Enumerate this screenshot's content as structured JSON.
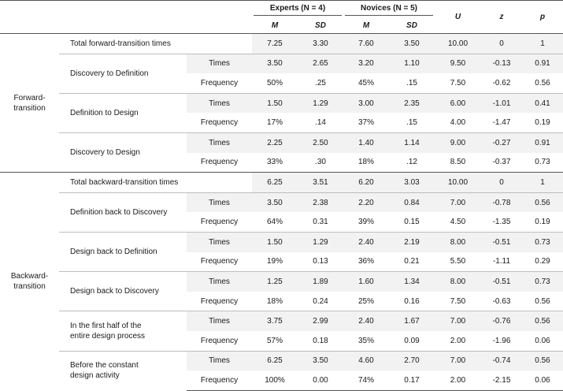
{
  "header": {
    "experts": "Experts (N = 4)",
    "novices": "Novices (N = 5)",
    "m": "M",
    "sd": "SD",
    "u": "U",
    "z": "z",
    "p": "p"
  },
  "sections": [
    {
      "label": "Forward-\ntransition",
      "total": {
        "label": "Total forward-transition times",
        "e_m": "7.25",
        "e_sd": "3.30",
        "n_m": "7.60",
        "n_sd": "3.50",
        "u": "10.00",
        "z": "0",
        "p": "1"
      },
      "groups": [
        {
          "label": "Discovery to Definition",
          "rows": [
            {
              "sub": "Times",
              "e_m": "3.50",
              "e_sd": "2.65",
              "n_m": "3.20",
              "n_sd": "1.10",
              "u": "9.50",
              "z": "-0.13",
              "p": "0.91"
            },
            {
              "sub": "Frequency",
              "e_m": "50%",
              "e_sd": ".25",
              "n_m": "45%",
              "n_sd": ".15",
              "u": "7.50",
              "z": "-0.62",
              "p": "0.56"
            }
          ]
        },
        {
          "label": "Definition to Design",
          "rows": [
            {
              "sub": "Times",
              "e_m": "1.50",
              "e_sd": "1.29",
              "n_m": "3.00",
              "n_sd": "2.35",
              "u": "6.00",
              "z": "-1.01",
              "p": "0.41"
            },
            {
              "sub": "Frequency",
              "e_m": "17%",
              "e_sd": ".14",
              "n_m": "37%",
              "n_sd": ".15",
              "u": "4.00",
              "z": "-1.47",
              "p": "0.19"
            }
          ]
        },
        {
          "label": "Discovery to Design",
          "rows": [
            {
              "sub": "Times",
              "e_m": "2.25",
              "e_sd": "2.50",
              "n_m": "1.40",
              "n_sd": "1.14",
              "u": "9.00",
              "z": "-0.27",
              "p": "0.91"
            },
            {
              "sub": "Frequency",
              "e_m": "33%",
              "e_sd": ".30",
              "n_m": "18%",
              "n_sd": ".12",
              "u": "8.50",
              "z": "-0.37",
              "p": "0.73"
            }
          ]
        }
      ]
    },
    {
      "label": "Backward-\ntransition",
      "total": {
        "label": "Total backward-transition times",
        "e_m": "6.25",
        "e_sd": "3.51",
        "n_m": "6.20",
        "n_sd": "3.03",
        "u": "10.00",
        "z": "0",
        "p": "1"
      },
      "groups": [
        {
          "label": "Definition back to Discovery",
          "rows": [
            {
              "sub": "Times",
              "e_m": "3.50",
              "e_sd": "2.38",
              "n_m": "2.20",
              "n_sd": "0.84",
              "u": "7.00",
              "z": "-0.78",
              "p": "0.56"
            },
            {
              "sub": "Frequency",
              "e_m": "64%",
              "e_sd": "0.31",
              "n_m": "39%",
              "n_sd": "0.15",
              "u": "4.50",
              "z": "-1.35",
              "p": "0.19"
            }
          ]
        },
        {
          "label": "Design back to Definition",
          "rows": [
            {
              "sub": "Times",
              "e_m": "1.50",
              "e_sd": "1.29",
              "n_m": "2.40",
              "n_sd": "2.19",
              "u": "8.00",
              "z": "-0.51",
              "p": "0.73"
            },
            {
              "sub": "Frequency",
              "e_m": "19%",
              "e_sd": "0.13",
              "n_m": "36%",
              "n_sd": "0.21",
              "u": "5.50",
              "z": "-1.11",
              "p": "0.29"
            }
          ]
        },
        {
          "label": "Design back to Discovery",
          "rows": [
            {
              "sub": "Times",
              "e_m": "1.25",
              "e_sd": "1.89",
              "n_m": "1.60",
              "n_sd": "1.34",
              "u": "8.00",
              "z": "-0.51",
              "p": "0.73"
            },
            {
              "sub": "Frequency",
              "e_m": "18%",
              "e_sd": "0.24",
              "n_m": "25%",
              "n_sd": "0.16",
              "u": "7.50",
              "z": "-0.63",
              "p": "0.56"
            }
          ]
        },
        {
          "label": "In the first half of the\nentire design process",
          "rows": [
            {
              "sub": "Times",
              "e_m": "3.75",
              "e_sd": "2.99",
              "n_m": "2.40",
              "n_sd": "1.67",
              "u": "7.00",
              "z": "-0.76",
              "p": "0.56"
            },
            {
              "sub": "Frequency",
              "e_m": "57%",
              "e_sd": "0.18",
              "n_m": "35%",
              "n_sd": "0.09",
              "u": "2.00",
              "z": "-1.96",
              "p": "0.06"
            }
          ]
        },
        {
          "label": "Before the constant\ndesign activity",
          "rows": [
            {
              "sub": "Times",
              "e_m": "6.25",
              "e_sd": "3.50",
              "n_m": "4.60",
              "n_sd": "2.70",
              "u": "7.00",
              "z": "-0.74",
              "p": "0.56"
            },
            {
              "sub": "Frequency",
              "e_m": "100%",
              "e_sd": "0.00",
              "n_m": "74%",
              "n_sd": "0.17",
              "u": "2.00",
              "z": "-2.15",
              "p": "0.06"
            }
          ]
        }
      ]
    }
  ]
}
